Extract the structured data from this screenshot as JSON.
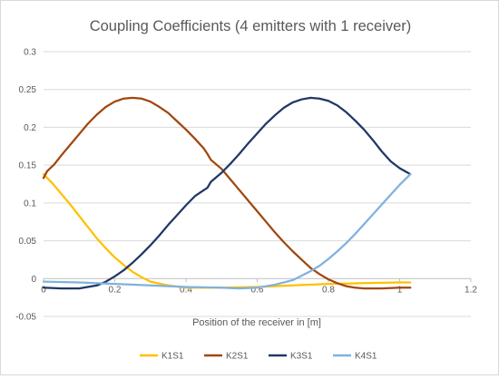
{
  "chart_data": {
    "type": "line",
    "title": "Coupling Coefficients (4 emitters with 1 receiver)",
    "xlabel": "Position of the receiver in [m]",
    "ylabel": "",
    "xlim": [
      0,
      1.2
    ],
    "ylim": [
      -0.05,
      0.3
    ],
    "xticks": [
      0,
      0.2,
      0.4,
      0.6,
      0.8,
      1,
      1.2
    ],
    "yticks": [
      -0.05,
      0,
      0.05,
      0.1,
      0.15,
      0.2,
      0.25,
      0.3
    ],
    "xtick_labels": [
      "0",
      "0.2",
      "0.4",
      "0.6",
      "0.8",
      "1",
      "1.2"
    ],
    "ytick_labels": [
      "-0.05",
      "0",
      "0.05",
      "0.1",
      "0.15",
      "0.2",
      "0.25",
      "0.3"
    ],
    "grid": "horizontal",
    "legend_position": "bottom",
    "series": [
      {
        "name": "K1S1",
        "color": "#FFC000",
        "points": [
          [
            0,
            0.138
          ],
          [
            0.025,
            0.126
          ],
          [
            0.05,
            0.112
          ],
          [
            0.075,
            0.098
          ],
          [
            0.1,
            0.083
          ],
          [
            0.125,
            0.068
          ],
          [
            0.15,
            0.053
          ],
          [
            0.175,
            0.04
          ],
          [
            0.2,
            0.028
          ],
          [
            0.225,
            0.018
          ],
          [
            0.25,
            0.009
          ],
          [
            0.275,
            0.002
          ],
          [
            0.3,
            -0.004
          ],
          [
            0.35,
            -0.009
          ],
          [
            0.4,
            -0.012
          ],
          [
            0.45,
            -0.012
          ],
          [
            0.5,
            -0.012
          ],
          [
            0.6,
            -0.011
          ],
          [
            0.7,
            -0.009
          ],
          [
            0.8,
            -0.007
          ],
          [
            0.9,
            -0.006
          ],
          [
            1.0,
            -0.005
          ],
          [
            1.03,
            -0.005
          ]
        ]
      },
      {
        "name": "K2S1",
        "color": "#A0470E",
        "points": [
          [
            0,
            0.133
          ],
          [
            0.01,
            0.142
          ],
          [
            0.03,
            0.151
          ],
          [
            0.05,
            0.163
          ],
          [
            0.075,
            0.177
          ],
          [
            0.1,
            0.191
          ],
          [
            0.125,
            0.205
          ],
          [
            0.15,
            0.217
          ],
          [
            0.175,
            0.227
          ],
          [
            0.2,
            0.234
          ],
          [
            0.225,
            0.238
          ],
          [
            0.25,
            0.239
          ],
          [
            0.275,
            0.238
          ],
          [
            0.3,
            0.234
          ],
          [
            0.325,
            0.227
          ],
          [
            0.35,
            0.219
          ],
          [
            0.375,
            0.208
          ],
          [
            0.4,
            0.197
          ],
          [
            0.425,
            0.185
          ],
          [
            0.45,
            0.172
          ],
          [
            0.46,
            0.165
          ],
          [
            0.47,
            0.157
          ],
          [
            0.5,
            0.145
          ],
          [
            0.525,
            0.131
          ],
          [
            0.55,
            0.117
          ],
          [
            0.575,
            0.103
          ],
          [
            0.6,
            0.089
          ],
          [
            0.625,
            0.075
          ],
          [
            0.65,
            0.061
          ],
          [
            0.675,
            0.048
          ],
          [
            0.7,
            0.036
          ],
          [
            0.725,
            0.025
          ],
          [
            0.75,
            0.014
          ],
          [
            0.775,
            0.006
          ],
          [
            0.8,
            -0.001
          ],
          [
            0.825,
            -0.006
          ],
          [
            0.85,
            -0.01
          ],
          [
            0.875,
            -0.012
          ],
          [
            0.9,
            -0.013
          ],
          [
            0.95,
            -0.013
          ],
          [
            1.0,
            -0.012
          ],
          [
            1.03,
            -0.012
          ]
        ]
      },
      {
        "name": "K3S1",
        "color": "#1F3864",
        "points": [
          [
            0,
            -0.012
          ],
          [
            0.05,
            -0.013
          ],
          [
            0.1,
            -0.013
          ],
          [
            0.15,
            -0.009
          ],
          [
            0.175,
            -0.004
          ],
          [
            0.2,
            0.003
          ],
          [
            0.225,
            0.011
          ],
          [
            0.25,
            0.021
          ],
          [
            0.275,
            0.032
          ],
          [
            0.3,
            0.044
          ],
          [
            0.325,
            0.057
          ],
          [
            0.35,
            0.071
          ],
          [
            0.375,
            0.084
          ],
          [
            0.4,
            0.097
          ],
          [
            0.425,
            0.109
          ],
          [
            0.45,
            0.117
          ],
          [
            0.46,
            0.12
          ],
          [
            0.47,
            0.128
          ],
          [
            0.5,
            0.14
          ],
          [
            0.525,
            0.152
          ],
          [
            0.55,
            0.165
          ],
          [
            0.575,
            0.179
          ],
          [
            0.6,
            0.192
          ],
          [
            0.625,
            0.205
          ],
          [
            0.65,
            0.216
          ],
          [
            0.675,
            0.226
          ],
          [
            0.7,
            0.233
          ],
          [
            0.725,
            0.237
          ],
          [
            0.75,
            0.239
          ],
          [
            0.775,
            0.238
          ],
          [
            0.8,
            0.235
          ],
          [
            0.825,
            0.229
          ],
          [
            0.85,
            0.22
          ],
          [
            0.875,
            0.209
          ],
          [
            0.9,
            0.197
          ],
          [
            0.925,
            0.183
          ],
          [
            0.95,
            0.168
          ],
          [
            0.975,
            0.155
          ],
          [
            1.0,
            0.146
          ],
          [
            1.03,
            0.138
          ]
        ]
      },
      {
        "name": "K4S1",
        "color": "#7FB2DE",
        "points": [
          [
            0,
            -0.004
          ],
          [
            0.1,
            -0.005
          ],
          [
            0.2,
            -0.007
          ],
          [
            0.3,
            -0.009
          ],
          [
            0.4,
            -0.011
          ],
          [
            0.5,
            -0.012
          ],
          [
            0.55,
            -0.013
          ],
          [
            0.6,
            -0.012
          ],
          [
            0.65,
            -0.008
          ],
          [
            0.7,
            -0.002
          ],
          [
            0.725,
            0.004
          ],
          [
            0.75,
            0.01
          ],
          [
            0.775,
            0.017
          ],
          [
            0.8,
            0.026
          ],
          [
            0.825,
            0.036
          ],
          [
            0.85,
            0.047
          ],
          [
            0.875,
            0.059
          ],
          [
            0.9,
            0.072
          ],
          [
            0.925,
            0.085
          ],
          [
            0.95,
            0.098
          ],
          [
            0.975,
            0.111
          ],
          [
            1.0,
            0.124
          ],
          [
            1.03,
            0.138
          ]
        ]
      }
    ]
  }
}
